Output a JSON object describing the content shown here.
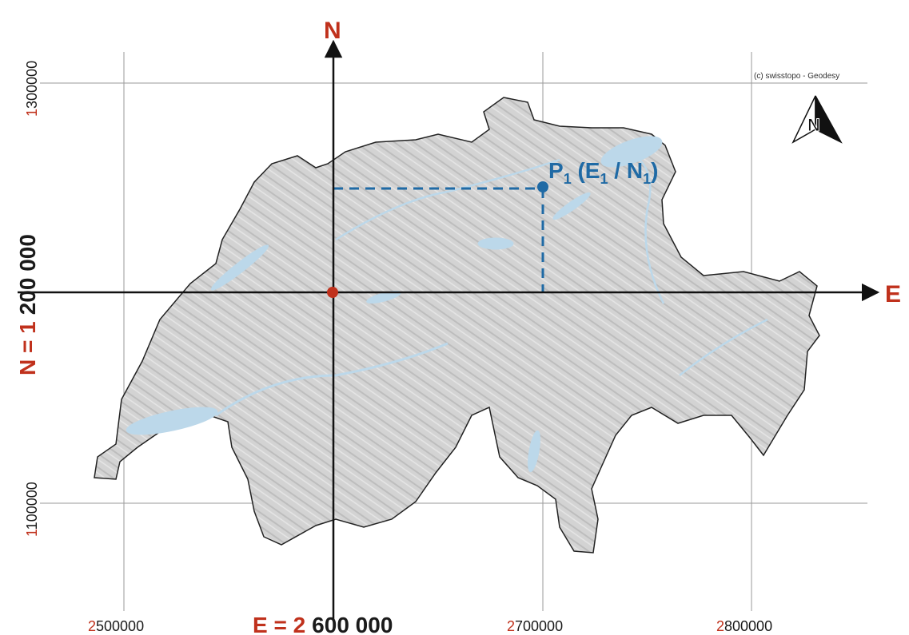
{
  "copyright": "(c) swisstopo - Geodesy",
  "compass": {
    "letter": "N",
    "icon": "north-arrow-icon"
  },
  "axes": {
    "north_letter": "N",
    "east_letter": "E"
  },
  "grid": {
    "eastings": [
      {
        "prefix": "2",
        "rest": "500000"
      },
      {
        "prefix": "2",
        "rest": "700000"
      },
      {
        "prefix": "2",
        "rest": "800000"
      }
    ],
    "northings": [
      {
        "prefix": "1",
        "rest": "300000"
      },
      {
        "prefix": "1",
        "rest": "100000"
      }
    ]
  },
  "origin_labels": {
    "easting_prefix": "E = 2",
    "easting_rest": "600 000",
    "northing_prefix": "N = 1",
    "northing_rest": "200 000"
  },
  "point": {
    "p": "P",
    "sub1": "1",
    "open": " (E",
    "sub2": "1",
    "slash": " / N",
    "sub3": "1",
    "close": ")"
  },
  "colors": {
    "accent_red": "#c0311c",
    "point_blue": "#1f6aa5",
    "map_gray": "#d2d2d2",
    "water": "#bcd8ea"
  }
}
